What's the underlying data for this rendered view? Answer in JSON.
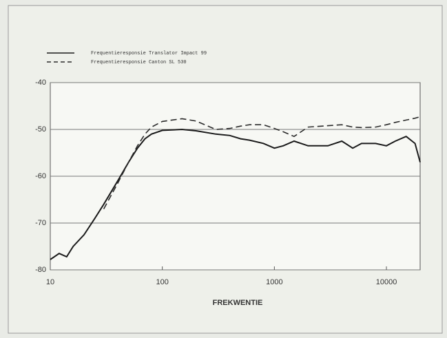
{
  "chart_data": {
    "type": "line",
    "x": [
      10,
      12,
      14,
      16,
      20,
      25,
      30,
      40,
      50,
      60,
      70,
      80,
      100,
      150,
      200,
      300,
      400,
      500,
      600,
      800,
      1000,
      1200,
      1500,
      2000,
      3000,
      4000,
      5000,
      6000,
      8000,
      10000,
      12000,
      15000,
      18000,
      20000
    ],
    "series": [
      {
        "name": "Frequentieresponsie Translator Impact 99",
        "color": "#1a1a1a",
        "dash": false,
        "values": [
          -77.8,
          -76.5,
          -77.2,
          -75,
          -72.5,
          -69,
          -66,
          -61,
          -57,
          -54,
          -52,
          -51,
          -50.2,
          -50,
          -50.3,
          -51,
          -51.3,
          -52,
          -52.3,
          -53,
          -54,
          -53.5,
          -52.5,
          -53.5,
          -53.5,
          -52.5,
          -54,
          -53,
          -53,
          -53.5,
          -52.5,
          -51.5,
          -53,
          -57
        ]
      },
      {
        "name": "Frequentieresponsie Canton SL 530",
        "color": "#2a2a2a",
        "dash": true,
        "values": [
          null,
          null,
          null,
          null,
          null,
          null,
          -67,
          -61.5,
          -57,
          -53.5,
          -51,
          -49.5,
          -48.3,
          -47.7,
          -48.2,
          -50,
          -49.8,
          -49.3,
          -49,
          -49,
          -49.8,
          -50.5,
          -51.5,
          -49.5,
          -49.2,
          -49,
          -49.5,
          -49.6,
          -49.5,
          -49,
          -48.5,
          -48,
          -47.6,
          -47.3
        ]
      }
    ],
    "xlabel": "FREKWENTIE",
    "xlim": [
      10,
      20000
    ],
    "xticks": [
      10,
      100,
      1000,
      10000
    ],
    "xlog": true,
    "ylim": [
      -80,
      -40
    ],
    "yticks": [
      -80,
      -70,
      -60,
      -50,
      -40
    ],
    "grid": true,
    "legend": "top-left"
  }
}
